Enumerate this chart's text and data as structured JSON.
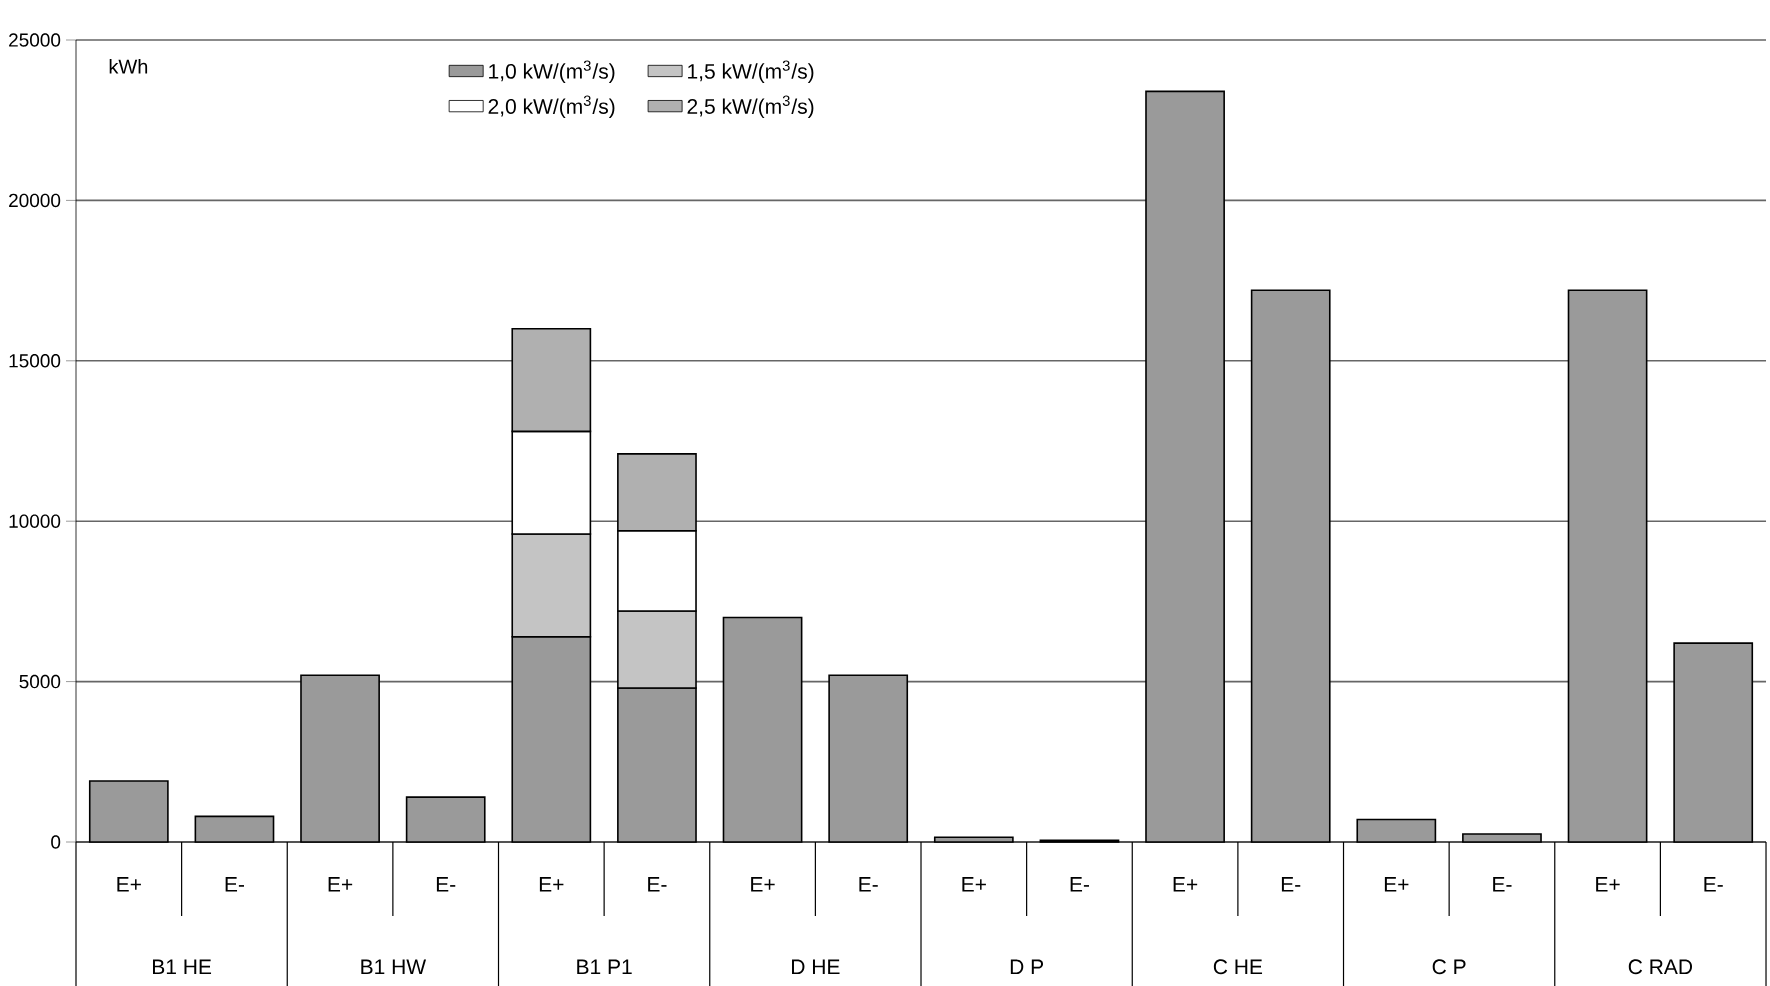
{
  "chart_data": {
    "type": "bar",
    "stacked": true,
    "ylabel": "kWh",
    "categories": [
      "E+",
      "E-",
      "E+",
      "E-",
      "E+",
      "E-",
      "E+",
      "E-",
      "E+",
      "E-",
      "E+",
      "E-",
      "E+",
      "E-",
      "E+",
      "E-"
    ],
    "annotations": [
      "B1  HE",
      "B1  HW",
      "B1  P1",
      "D  HE",
      "D  P",
      "C  HE",
      "C  P",
      "C  RAD"
    ],
    "series": [
      {
        "name": "1,0  kW/(m$^{3}$/s)",
        "color": "#9a9a9a",
        "values": [
          1900,
          800,
          5200,
          1400,
          6400,
          4800,
          7000,
          5200,
          150,
          50,
          23400,
          17200,
          700,
          250,
          17200,
          6200
        ]
      },
      {
        "name": "1,5  kW/(m$^{3}$/s)",
        "color": "#c4c4c4",
        "values": [
          null,
          null,
          null,
          null,
          3200,
          2400,
          null,
          null,
          null,
          null,
          null,
          null,
          null,
          null,
          null,
          null
        ]
      },
      {
        "name": "2,0  kW/(m$^{3}$/s)",
        "color": "#ffffff",
        "values": [
          null,
          null,
          null,
          null,
          3200,
          2500,
          null,
          null,
          null,
          null,
          null,
          null,
          null,
          null,
          null,
          null
        ]
      },
      {
        "name": "2,5  kW/(m$^{3}$/s)",
        "color": "#b0b0b0",
        "values": [
          null,
          null,
          null,
          null,
          3200,
          2400,
          null,
          null,
          null,
          null,
          null,
          null,
          null,
          null,
          null,
          null
        ]
      }
    ],
    "ylim": [
      0,
      25000
    ],
    "yticks": [
      0,
      5000,
      10000,
      15000,
      20000,
      25000
    ],
    "grid": "y",
    "legend": "top"
  }
}
